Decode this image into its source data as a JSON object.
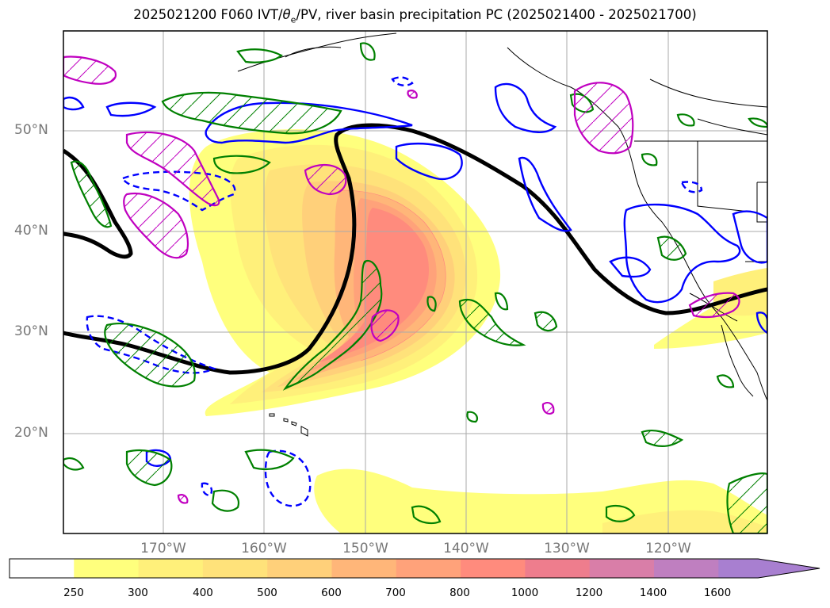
{
  "title": {
    "prefix": "2025021200 F060 IVT/",
    "theta": "θ",
    "sub": "e",
    "suffix": "/PV, river basin precipitation PC (2025021400 - 2025021700)"
  },
  "lat_labels": [
    "50°N",
    "40°N",
    "30°N",
    "20°N"
  ],
  "lon_labels": [
    "170°W",
    "160°W",
    "150°W",
    "140°W",
    "130°W",
    "120°W"
  ],
  "colorbar": {
    "labels": [
      "250",
      "300",
      "400",
      "500",
      "600",
      "700",
      "800",
      "1000",
      "1200",
      "1400",
      "1600"
    ],
    "colors": [
      "#ffffff",
      "#ffff7d",
      "#fff07a",
      "#ffe27a",
      "#ffd07a",
      "#ffb679",
      "#ffa27a",
      "#ff8b7d",
      "#ee7d8d",
      "#d97ea8",
      "#bf7fc0",
      "#a87fd0"
    ],
    "extend": "max"
  },
  "legend_colors": {
    "pv": "#000000",
    "theta_neg": "#0000ff",
    "theta_pos": "#008000",
    "precip": "#c000c0"
  }
}
